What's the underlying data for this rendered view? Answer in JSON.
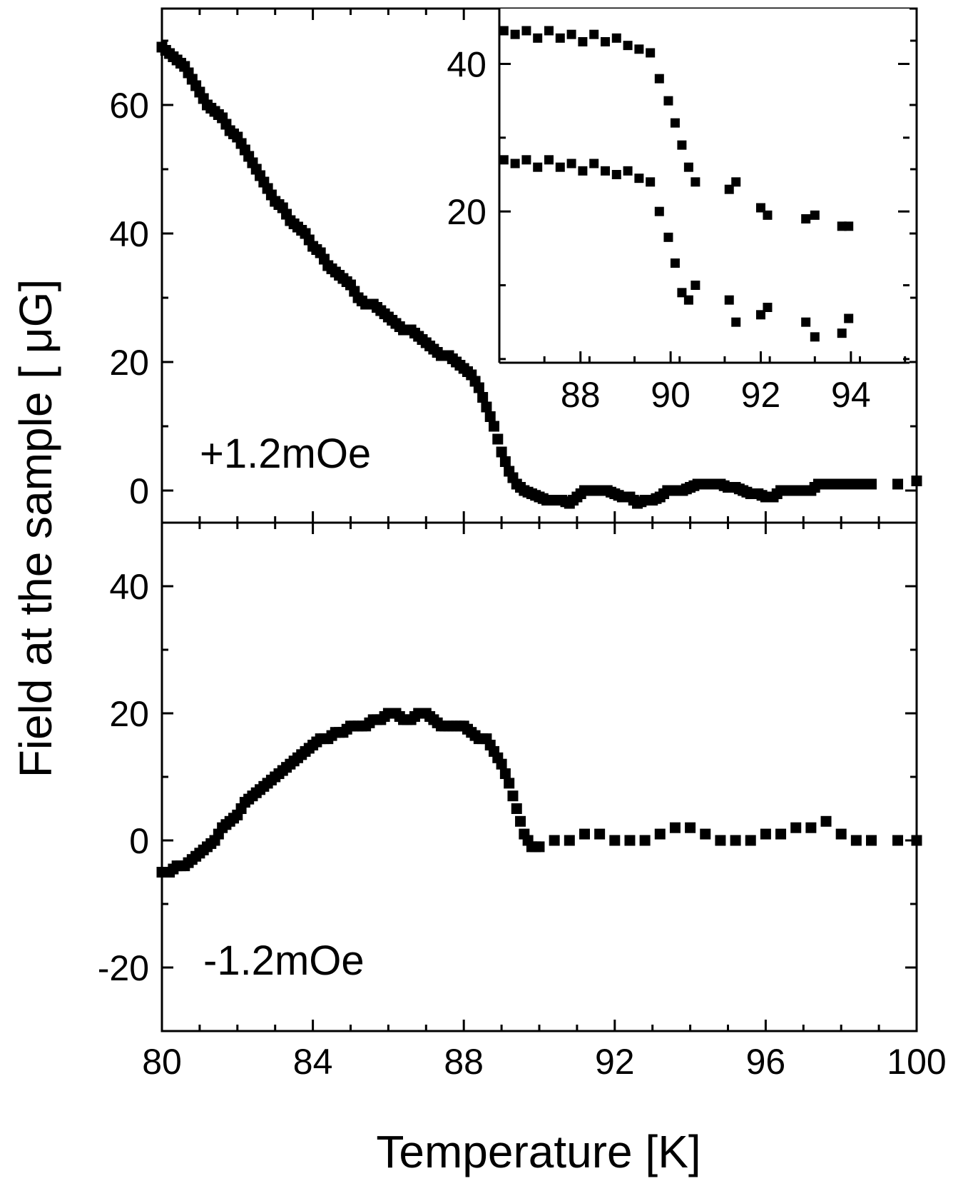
{
  "chart_data": [
    {
      "id": "top-panel",
      "type": "scatter",
      "xlabel": "Temperature [K]",
      "ylabel": "Field at the sample [ μG]",
      "xlim": [
        80,
        100
      ],
      "ylim": [
        -5,
        75
      ],
      "xticks": [
        80,
        84,
        88,
        92,
        96,
        100
      ],
      "yticks": [
        0,
        20,
        40,
        60
      ],
      "yticklabels": [
        "0",
        "20",
        "40",
        "60"
      ],
      "annotation": "+1.2mOe",
      "grid": false,
      "series": [
        {
          "x": [
            80.0,
            80.2,
            80.4,
            80.6,
            80.8,
            81.0,
            81.2,
            81.4,
            81.6,
            81.8,
            82.0,
            82.2,
            82.4,
            82.6,
            82.8,
            83.0,
            83.2,
            83.4,
            83.6,
            83.8,
            84.0,
            84.2,
            84.4,
            84.6,
            84.8,
            85.0,
            85.2,
            85.4,
            85.6,
            85.8,
            86.0,
            86.2,
            86.4,
            86.6,
            86.8,
            87.0,
            87.2,
            87.4,
            87.6,
            87.8,
            88.0,
            88.2,
            88.4,
            88.6,
            88.8,
            89.0,
            89.2,
            89.4,
            89.6,
            89.8,
            90.0,
            90.2,
            90.4,
            90.6,
            90.8,
            91.0,
            91.2,
            91.4,
            91.6,
            91.8,
            92.0,
            92.2,
            92.4,
            92.6,
            92.8,
            93.0,
            93.2,
            93.4,
            93.6,
            93.8,
            94.0,
            94.2,
            94.4,
            94.6,
            94.8,
            95.0,
            95.2,
            95.4,
            95.6,
            95.8,
            96.0,
            96.2,
            96.4,
            96.6,
            96.8,
            97.0,
            97.2,
            97.4,
            97.6,
            97.8,
            98.0,
            98.2,
            98.4,
            98.6,
            98.8,
            99.5,
            100.0
          ],
          "y": [
            69,
            68,
            67,
            66,
            64,
            62,
            60,
            59,
            58,
            56,
            55,
            53,
            51,
            49,
            47,
            45,
            44,
            42,
            41,
            40,
            38,
            37,
            35,
            34,
            33,
            32,
            30,
            29,
            29,
            28,
            27,
            26,
            25,
            25,
            24,
            23,
            22,
            21,
            21,
            20,
            19,
            18,
            16,
            13,
            10,
            6,
            3,
            1,
            0,
            -0.5,
            -1,
            -1.5,
            -1.5,
            -1.5,
            -2,
            -1,
            0,
            0,
            0,
            0,
            -0.5,
            -1,
            -1,
            -2,
            -1.5,
            -1.5,
            -1,
            0,
            0,
            0,
            0.5,
            1,
            1,
            1,
            1,
            0.5,
            0.5,
            0,
            -0.5,
            -0.5,
            -1,
            -1,
            0,
            0,
            0,
            0,
            0,
            1,
            1,
            1,
            1,
            1,
            1,
            1,
            1,
            1,
            1.5
          ]
        }
      ]
    },
    {
      "id": "bottom-panel",
      "type": "scatter",
      "xlabel": "Temperature [K]",
      "ylabel": "Field at the sample [ μG]",
      "xlim": [
        80,
        100
      ],
      "ylim": [
        -30,
        50
      ],
      "xticks": [
        80,
        84,
        88,
        92,
        96,
        100
      ],
      "xticklabels": [
        "80",
        "84",
        "88",
        "92",
        "96",
        "100"
      ],
      "yticks": [
        -20,
        0,
        20,
        40
      ],
      "yticklabels": [
        "-20",
        "0",
        "20",
        "40"
      ],
      "annotation": "-1.2mOe",
      "grid": false,
      "series": [
        {
          "x": [
            80.0,
            80.2,
            80.4,
            80.6,
            80.8,
            81.0,
            81.2,
            81.4,
            81.6,
            81.8,
            82.0,
            82.2,
            82.4,
            82.6,
            82.8,
            83.0,
            83.2,
            83.4,
            83.6,
            83.8,
            84.0,
            84.2,
            84.4,
            84.6,
            84.8,
            85.0,
            85.2,
            85.4,
            85.6,
            85.8,
            86.0,
            86.2,
            86.4,
            86.6,
            86.8,
            87.0,
            87.2,
            87.4,
            87.6,
            87.8,
            88.0,
            88.2,
            88.4,
            88.6,
            88.8,
            89.0,
            89.2,
            89.4,
            89.6,
            89.8,
            90.0,
            90.4,
            90.8,
            91.2,
            91.6,
            92.0,
            92.4,
            92.8,
            93.2,
            93.6,
            94.0,
            94.4,
            94.8,
            95.2,
            95.6,
            96.0,
            96.4,
            96.8,
            97.2,
            97.6,
            98.0,
            98.4,
            98.8,
            99.5,
            100.0
          ],
          "y": [
            -5,
            -5,
            -4,
            -4,
            -3,
            -2,
            -1,
            0,
            2,
            3,
            4,
            6,
            7,
            8,
            9,
            10,
            11,
            12,
            13,
            14,
            15,
            16,
            16,
            17,
            17,
            18,
            18,
            18,
            19,
            19,
            20,
            20,
            19,
            19,
            20,
            20,
            19,
            18,
            18,
            18,
            18,
            17,
            16,
            16,
            14,
            12,
            9,
            5,
            1,
            -1,
            -1,
            0,
            0,
            1,
            1,
            0,
            0,
            0,
            1,
            2,
            2,
            1,
            0,
            0,
            0,
            1,
            1,
            2,
            2,
            3,
            1,
            0,
            0,
            0,
            0
          ]
        }
      ]
    },
    {
      "id": "inset",
      "type": "scatter",
      "xlim": [
        86.2,
        95.3
      ],
      "ylim": [
        -0.5,
        47.5
      ],
      "xticks": [
        88,
        90,
        92,
        94
      ],
      "xticklabels": [
        "88",
        "90",
        "92",
        "94"
      ],
      "yticks": [
        20,
        40
      ],
      "yticklabels": [
        "20",
        "40"
      ],
      "grid": false,
      "series": [
        {
          "x": [
            86.3,
            86.55,
            86.8,
            87.05,
            87.3,
            87.55,
            87.8,
            88.05,
            88.3,
            88.55,
            88.8,
            89.05,
            89.3,
            89.55,
            89.75,
            89.95,
            90.1,
            90.25,
            90.4,
            90.55,
            91.3,
            91.45,
            92.0,
            92.15,
            93.0,
            93.2,
            93.8,
            93.95
          ],
          "y": [
            44.5,
            44,
            44.5,
            43.5,
            44.5,
            43.5,
            44,
            43,
            44,
            43,
            43.5,
            42.5,
            42,
            41.5,
            38,
            35,
            32,
            29,
            26,
            24,
            23,
            24,
            20.5,
            19.5,
            19,
            19.5,
            18,
            18
          ],
          "name": ""
        },
        {
          "x": [
            86.3,
            86.55,
            86.8,
            87.05,
            87.3,
            87.55,
            87.8,
            88.05,
            88.3,
            88.55,
            88.8,
            89.05,
            89.3,
            89.55,
            89.75,
            89.95,
            90.1,
            90.25,
            90.4,
            90.55,
            91.3,
            91.45,
            92.0,
            92.15,
            93.0,
            93.2,
            93.8,
            93.95
          ],
          "y": [
            27,
            26.5,
            27,
            26,
            27,
            26,
            26.5,
            25.5,
            26.5,
            25.5,
            25,
            25.5,
            24.5,
            24,
            20,
            16.5,
            13,
            9,
            8,
            10,
            8,
            5,
            6,
            7,
            5,
            3,
            3.5,
            5.5
          ],
          "name": ""
        }
      ]
    }
  ]
}
